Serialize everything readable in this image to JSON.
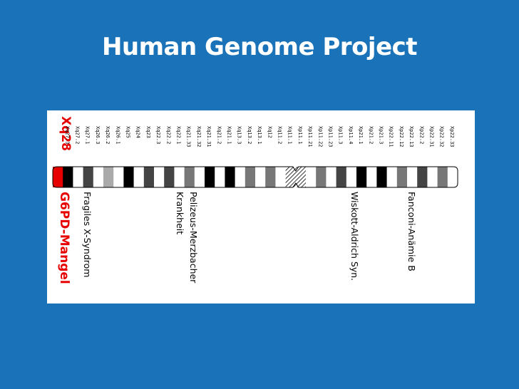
{
  "slide": {
    "title": "Human Genome Project",
    "background_color": "#1a73b8",
    "title_color": "#ffffff"
  },
  "ideogram": {
    "chromosome": "X",
    "highlight_color": "#e60000",
    "highlight_band": "Xq28",
    "highlight_disease": "G6PD-Mangel",
    "bands": [
      {
        "name": "Xq28",
        "stain": "red"
      },
      {
        "name": "Xq27.3",
        "stain": "black"
      },
      {
        "name": "Xq27.2",
        "stain": "white"
      },
      {
        "name": "Xq27.1",
        "stain": "darkgray"
      },
      {
        "name": "Xq26.3",
        "stain": "white"
      },
      {
        "name": "Xq26.2",
        "stain": "lightgray"
      },
      {
        "name": "Xq26.1",
        "stain": "white"
      },
      {
        "name": "Xq25",
        "stain": "black"
      },
      {
        "name": "Xq24",
        "stain": "white"
      },
      {
        "name": "Xq23",
        "stain": "darkgray"
      },
      {
        "name": "Xq22.3",
        "stain": "white"
      },
      {
        "name": "Xq22.2",
        "stain": "darkgray"
      },
      {
        "name": "Xq22.1",
        "stain": "white"
      },
      {
        "name": "Xq21.33",
        "stain": "gray"
      },
      {
        "name": "Xq21.32",
        "stain": "white"
      },
      {
        "name": "Xq21.31",
        "stain": "black"
      },
      {
        "name": "Xq21.2",
        "stain": "white"
      },
      {
        "name": "Xq21.1",
        "stain": "black"
      },
      {
        "name": "Xq13.3",
        "stain": "white"
      },
      {
        "name": "Xq13.2",
        "stain": "gray"
      },
      {
        "name": "Xq13.1",
        "stain": "white"
      },
      {
        "name": "Xq12",
        "stain": "gray"
      },
      {
        "name": "Xq11.2",
        "stain": "white"
      },
      {
        "name": "Xq11.1",
        "stain": "hatched"
      },
      {
        "name": "Xp11.1",
        "stain": "hatched"
      },
      {
        "name": "Xp11.21",
        "stain": "white"
      },
      {
        "name": "Xp11.22",
        "stain": "gray"
      },
      {
        "name": "Xp11.23",
        "stain": "white"
      },
      {
        "name": "Xp11.3",
        "stain": "darkgray"
      },
      {
        "name": "Xp11.4",
        "stain": "white"
      },
      {
        "name": "Xp21.1",
        "stain": "black"
      },
      {
        "name": "Xp21.2",
        "stain": "white"
      },
      {
        "name": "Xp21.3",
        "stain": "black"
      },
      {
        "name": "Xp22.11",
        "stain": "white"
      },
      {
        "name": "Xp22.12",
        "stain": "gray"
      },
      {
        "name": "Xp22.13",
        "stain": "white"
      },
      {
        "name": "Xp22.2",
        "stain": "darkgray"
      },
      {
        "name": "Xp22.31",
        "stain": "white"
      },
      {
        "name": "Xp22.32",
        "stain": "gray"
      },
      {
        "name": "Xp22.33",
        "stain": "white"
      }
    ],
    "diseases": [
      "Fragiles X-Syndrom",
      "Pelizeus-Merzbacher",
      "Krankheit",
      "Wiskott-Aldrich Syn.",
      "Fanconi-Anämie B"
    ]
  }
}
